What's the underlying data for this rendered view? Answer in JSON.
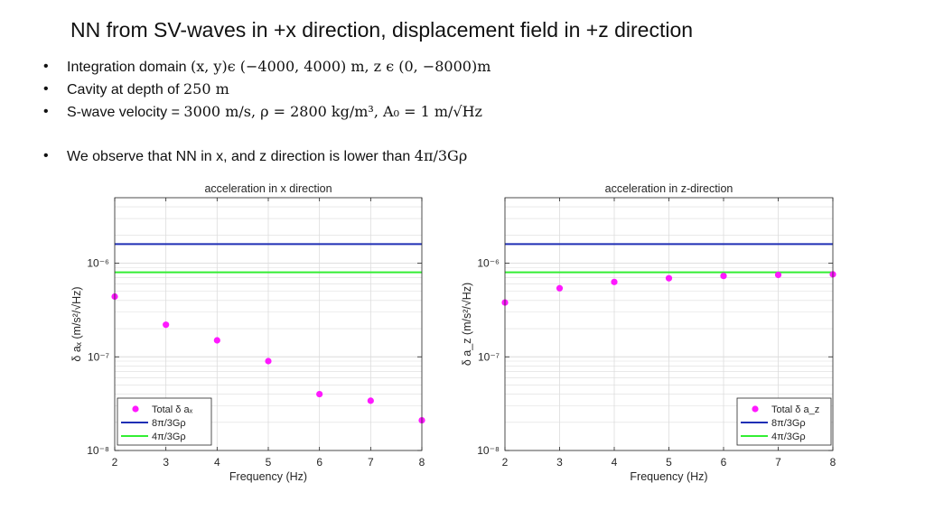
{
  "slide": {
    "title": "NN from SV-waves in +x direction, displacement field in +z direction",
    "bullets": [
      {
        "prefix": "Integration domain ",
        "math": "(x, y)ϵ (−4000, 4000) m, z ϵ (0, −8000)m"
      },
      {
        "prefix": "Cavity at depth of ",
        "math": "250 m"
      },
      {
        "prefix": "S-wave velocity = ",
        "math": "3000 m/s, ρ = 2800 kg/m³, A₀ = 1 m/√Hz"
      },
      {
        "prefix": "We observe that NN in x, and z direction is lower than ",
        "math": "4π/3Gρ"
      }
    ]
  },
  "colors": {
    "points": "#ff19ff",
    "line_8pi": "#1f2fb5",
    "line_4pi": "#33ee33",
    "axis": "#262626",
    "grid": "#dcdcdc"
  },
  "chart_data": [
    {
      "type": "scatter",
      "title": "acceleration in x direction",
      "xlabel": "Frequency (Hz)",
      "ylabel": "δ aₓ (m/s²/√Hz)",
      "xlim": [
        2,
        8
      ],
      "ylim": [
        1e-08,
        5e-06
      ],
      "yscale": "log",
      "grid": true,
      "legend": "bottom-left",
      "xticks": [
        "2",
        "3",
        "4",
        "5",
        "6",
        "7",
        "8"
      ],
      "yticks": [
        "10⁻⁸",
        "10⁻⁷",
        "10⁻⁶"
      ],
      "series": [
        {
          "name": "Total δ aₓ",
          "kind": "points",
          "x": [
            2,
            3,
            4,
            5,
            6,
            7,
            8
          ],
          "y": [
            4.4e-07,
            2.2e-07,
            1.5e-07,
            9e-08,
            4e-08,
            3.4e-08,
            2.1e-08
          ]
        },
        {
          "name": "8π/3Gρ",
          "kind": "hline",
          "y": 1.6e-06
        },
        {
          "name": "4π/3Gρ",
          "kind": "hline",
          "y": 8e-07
        }
      ]
    },
    {
      "type": "scatter",
      "title": "acceleration in z-direction",
      "xlabel": "Frequency (Hz)",
      "ylabel": "δ a_z (m/s²/√Hz)",
      "xlim": [
        2,
        8
      ],
      "ylim": [
        1e-08,
        5e-06
      ],
      "yscale": "log",
      "grid": true,
      "legend": "bottom-right",
      "xticks": [
        "2",
        "3",
        "4",
        "5",
        "6",
        "7",
        "8"
      ],
      "yticks": [
        "10⁻⁸",
        "10⁻⁷",
        "10⁻⁶"
      ],
      "series": [
        {
          "name": "Total δ a_z",
          "kind": "points",
          "x": [
            2,
            3,
            4,
            5,
            6,
            7,
            8
          ],
          "y": [
            3.8e-07,
            5.4e-07,
            6.3e-07,
            6.9e-07,
            7.3e-07,
            7.5e-07,
            7.6e-07
          ]
        },
        {
          "name": "8π/3Gρ",
          "kind": "hline",
          "y": 1.6e-06
        },
        {
          "name": "4π/3Gρ",
          "kind": "hline",
          "y": 8e-07
        }
      ]
    }
  ]
}
